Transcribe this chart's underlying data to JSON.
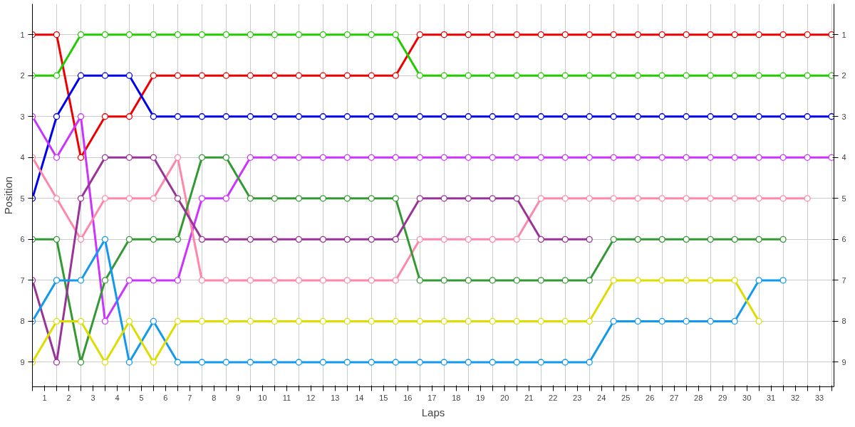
{
  "chart_data": {
    "type": "line",
    "xlabel": "Laps",
    "ylabel": "Position",
    "marker": "circle",
    "grid": true,
    "x": [
      0,
      1,
      2,
      3,
      4,
      5,
      6,
      7,
      8,
      9,
      10,
      11,
      12,
      13,
      14,
      15,
      16,
      17,
      18,
      19,
      20,
      21,
      22,
      23,
      24,
      25,
      26,
      27,
      28,
      29,
      30,
      31,
      32,
      33
    ],
    "xlim": [
      0,
      33.1
    ],
    "xticks": [
      {
        "value": 0,
        "label": null
      },
      {
        "value": 0.5,
        "label": "1"
      },
      {
        "value": 1,
        "label": null
      },
      {
        "value": 1.5,
        "label": "2"
      },
      {
        "value": 2,
        "label": null
      },
      {
        "value": 2.5,
        "label": "3"
      },
      {
        "value": 3,
        "label": null
      },
      {
        "value": 3.5,
        "label": "4"
      },
      {
        "value": 4,
        "label": null
      },
      {
        "value": 4.5,
        "label": "5"
      },
      {
        "value": 5,
        "label": null
      },
      {
        "value": 5.5,
        "label": "6"
      },
      {
        "value": 6,
        "label": null
      },
      {
        "value": 6.5,
        "label": "7"
      },
      {
        "value": 7,
        "label": null
      },
      {
        "value": 7.5,
        "label": "8"
      },
      {
        "value": 8,
        "label": null
      },
      {
        "value": 8.5,
        "label": "9"
      },
      {
        "value": 9,
        "label": null
      },
      {
        "value": 9.5,
        "label": "10"
      },
      {
        "value": 10,
        "label": null
      },
      {
        "value": 10.5,
        "label": "11"
      },
      {
        "value": 11,
        "label": null
      },
      {
        "value": 11.5,
        "label": "12"
      },
      {
        "value": 12,
        "label": null
      },
      {
        "value": 12.5,
        "label": "13"
      },
      {
        "value": 13,
        "label": null
      },
      {
        "value": 13.5,
        "label": "14"
      },
      {
        "value": 14,
        "label": null
      },
      {
        "value": 14.5,
        "label": "15"
      },
      {
        "value": 15,
        "label": null
      },
      {
        "value": 15.5,
        "label": "16"
      },
      {
        "value": 16,
        "label": null
      },
      {
        "value": 16.5,
        "label": "17"
      },
      {
        "value": 17,
        "label": null
      },
      {
        "value": 17.5,
        "label": "18"
      },
      {
        "value": 18,
        "label": null
      },
      {
        "value": 18.5,
        "label": "19"
      },
      {
        "value": 19,
        "label": null
      },
      {
        "value": 19.5,
        "label": "20"
      },
      {
        "value": 20,
        "label": null
      },
      {
        "value": 20.5,
        "label": "21"
      },
      {
        "value": 21,
        "label": null
      },
      {
        "value": 21.5,
        "label": "22"
      },
      {
        "value": 22,
        "label": null
      },
      {
        "value": 22.5,
        "label": "23"
      },
      {
        "value": 23,
        "label": null
      },
      {
        "value": 23.5,
        "label": "24"
      },
      {
        "value": 24,
        "label": null
      },
      {
        "value": 24.5,
        "label": "25"
      },
      {
        "value": 25,
        "label": null
      },
      {
        "value": 25.5,
        "label": "26"
      },
      {
        "value": 26,
        "label": null
      },
      {
        "value": 26.5,
        "label": "27"
      },
      {
        "value": 27,
        "label": null
      },
      {
        "value": 27.5,
        "label": "28"
      },
      {
        "value": 28,
        "label": null
      },
      {
        "value": 28.5,
        "label": "29"
      },
      {
        "value": 29,
        "label": null
      },
      {
        "value": 29.5,
        "label": "30"
      },
      {
        "value": 30,
        "label": null
      },
      {
        "value": 30.5,
        "label": "31"
      },
      {
        "value": 31,
        "label": null
      },
      {
        "value": 31.5,
        "label": "32"
      },
      {
        "value": 32,
        "label": null
      },
      {
        "value": 32.5,
        "label": "33"
      },
      {
        "value": 33,
        "label": null
      }
    ],
    "ylim": [
      9.6,
      0.25
    ],
    "yticks": [
      1,
      2,
      3,
      4,
      5,
      6,
      7,
      8,
      9
    ],
    "y2lim": [
      9.6,
      0.25
    ],
    "y2ticks": [
      1,
      2,
      3,
      4,
      5,
      6,
      7,
      8,
      9
    ],
    "series": [
      {
        "color": "#ee0000",
        "values": [
          1,
          1,
          4,
          3,
          3,
          2,
          2,
          2,
          2,
          2,
          2,
          2,
          2,
          2,
          2,
          2,
          1,
          1,
          1,
          1,
          1,
          1,
          1,
          1,
          1,
          1,
          1,
          1,
          1,
          1,
          1,
          1,
          1,
          1
        ]
      },
      {
        "color": "#22cc00",
        "values": [
          2,
          2,
          1,
          1,
          1,
          1,
          1,
          1,
          1,
          1,
          1,
          1,
          1,
          1,
          1,
          1,
          2,
          2,
          2,
          2,
          2,
          2,
          2,
          2,
          2,
          2,
          2,
          2,
          2,
          2,
          2,
          2,
          2,
          2
        ]
      },
      {
        "color": "#0000ee",
        "values": [
          5,
          3,
          2,
          2,
          2,
          3,
          3,
          3,
          3,
          3,
          3,
          3,
          3,
          3,
          3,
          3,
          3,
          3,
          3,
          3,
          3,
          3,
          3,
          3,
          3,
          3,
          3,
          3,
          3,
          3,
          3,
          3,
          3,
          3
        ]
      },
      {
        "color": "#cc33ff",
        "values": [
          3,
          4,
          3,
          8,
          7,
          7,
          7,
          5,
          5,
          4,
          4,
          4,
          4,
          4,
          4,
          4,
          4,
          4,
          4,
          4,
          4,
          4,
          4,
          4,
          4,
          4,
          4,
          4,
          4,
          4,
          4,
          4,
          4,
          4
        ]
      },
      {
        "color": "#ff88aa",
        "values": [
          4,
          5,
          6,
          5,
          5,
          5,
          4,
          7,
          7,
          7,
          7,
          7,
          7,
          7,
          7,
          7,
          6,
          6,
          6,
          6,
          6,
          5,
          5,
          5,
          5,
          5,
          5,
          5,
          5,
          5,
          5,
          5,
          5,
          null
        ]
      },
      {
        "color": "#339933",
        "values": [
          6,
          6,
          9,
          7,
          6,
          6,
          6,
          4,
          4,
          5,
          5,
          5,
          5,
          5,
          5,
          5,
          7,
          7,
          7,
          7,
          7,
          7,
          7,
          7,
          6,
          6,
          6,
          6,
          6,
          6,
          6,
          6,
          null,
          null
        ]
      },
      {
        "color": "#993399",
        "values": [
          7,
          9,
          5,
          4,
          4,
          4,
          5,
          6,
          6,
          6,
          6,
          6,
          6,
          6,
          6,
          6,
          5,
          5,
          5,
          5,
          5,
          6,
          6,
          6,
          null,
          null,
          null,
          null,
          null,
          null,
          null,
          null,
          null,
          null
        ]
      },
      {
        "color": "#1199ee",
        "values": [
          8,
          7,
          7,
          6,
          9,
          8,
          9,
          9,
          9,
          9,
          9,
          9,
          9,
          9,
          9,
          9,
          9,
          9,
          9,
          9,
          9,
          9,
          9,
          9,
          8,
          8,
          8,
          8,
          8,
          8,
          7,
          7,
          null,
          null
        ]
      },
      {
        "color": "#dddd00",
        "values": [
          9,
          8,
          8,
          9,
          8,
          9,
          8,
          8,
          8,
          8,
          8,
          8,
          8,
          8,
          8,
          8,
          8,
          8,
          8,
          8,
          8,
          8,
          8,
          8,
          7,
          7,
          7,
          7,
          7,
          7,
          8,
          null,
          null,
          null
        ]
      }
    ]
  }
}
